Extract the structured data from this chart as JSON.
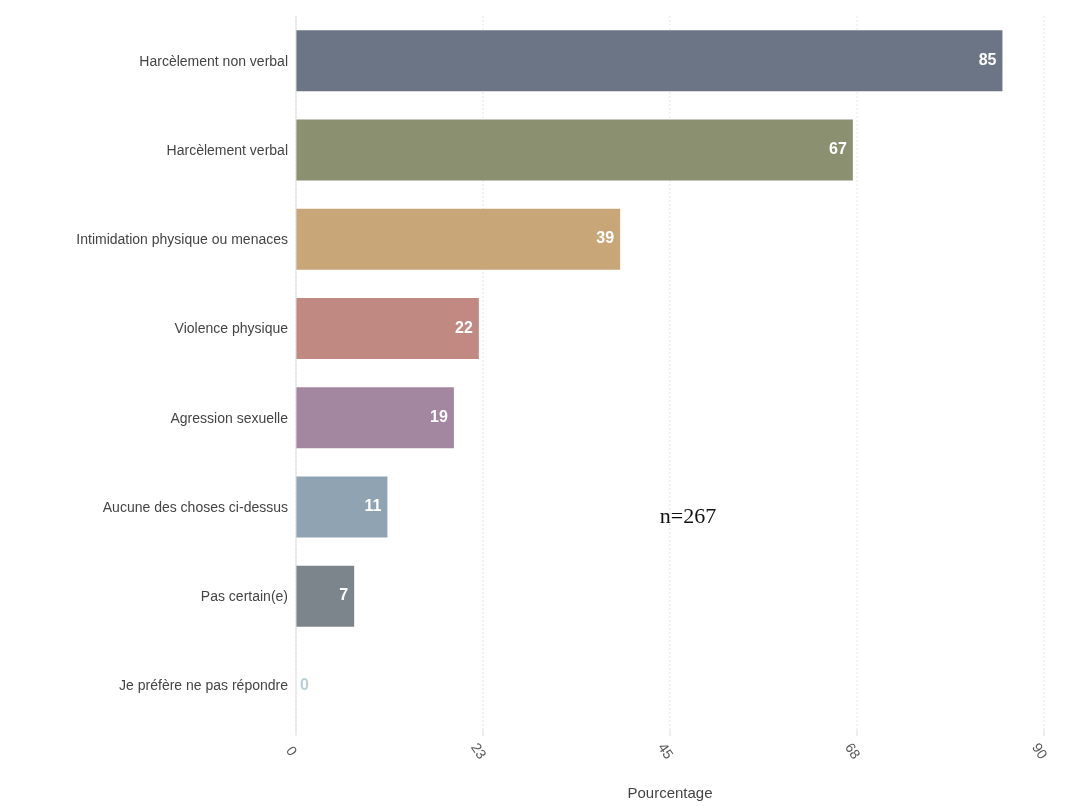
{
  "chart_data": {
    "type": "bar",
    "orientation": "horizontal",
    "xlabel": "Pourcentage",
    "categories": [
      "Harcèlement non verbal",
      "Harcèlement verbal",
      "Intimidation physique ou menaces",
      "Violence physique",
      "Agression sexuelle",
      "Aucune des choses ci-dessus",
      "Pas certain(e)",
      "Je préfère ne pas répondre"
    ],
    "values": [
      85,
      67,
      39,
      22,
      19,
      11,
      7,
      0
    ],
    "colors": [
      "#6b7585",
      "#8a9070",
      "#c9a678",
      "#c08a82",
      "#a3869f",
      "#8fa3b3",
      "#7d858c",
      "#b8d0d8"
    ],
    "xlim": [
      0,
      90
    ],
    "xticks": [
      0,
      {
        "value": 22.5,
        "label": "23"
      },
      45,
      {
        "value": 67.5,
        "label": "68"
      },
      90
    ],
    "grid": "x",
    "data_labels": true,
    "annotations": [
      "n=267"
    ]
  }
}
